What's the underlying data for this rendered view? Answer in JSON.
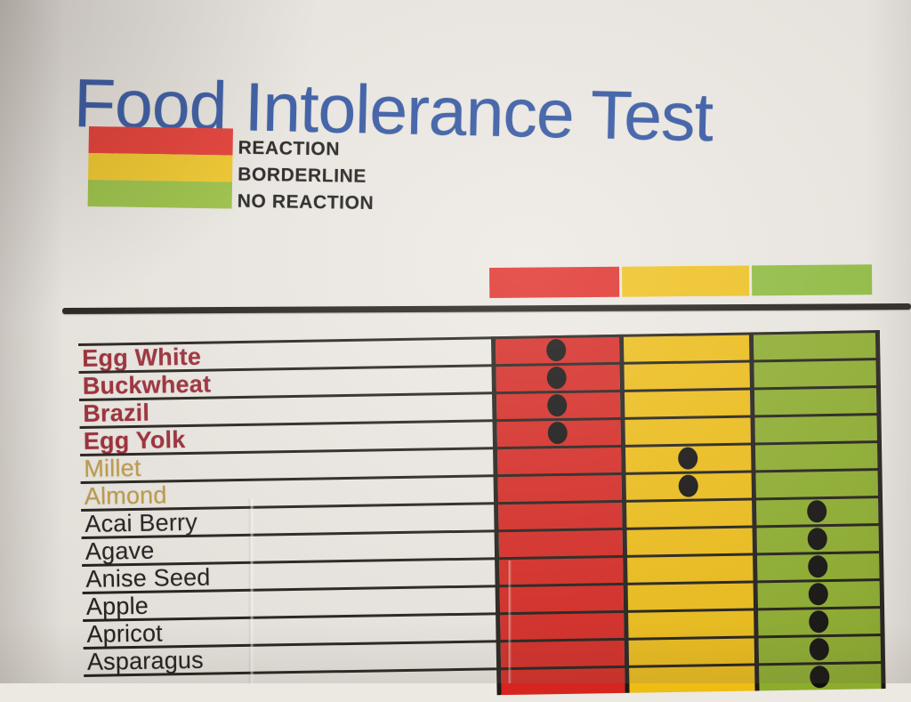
{
  "title": "Food Intolerance Test",
  "legend": {
    "items": [
      {
        "label": "REACTION",
        "color": "#e63229"
      },
      {
        "label": "BORDERLINE",
        "color": "#f2c71e"
      },
      {
        "label": "NO REACTION",
        "color": "#97c03c"
      }
    ]
  },
  "header_bar": {
    "segments": [
      {
        "name": "reaction",
        "color": "#e02b25"
      },
      {
        "name": "borderline",
        "color": "#f0c11a"
      },
      {
        "name": "no_reaction",
        "color": "#8cbb3a"
      }
    ]
  },
  "table": {
    "categories": {
      "reaction": {
        "label_color": "#9b2531",
        "bold": true,
        "column": "reaction"
      },
      "borderline": {
        "label_color": "#bf9a40",
        "bold": false,
        "column": "borderline"
      },
      "no_reaction": {
        "label_color": "#1d1c1a",
        "bold": false,
        "column": "no_reaction"
      }
    },
    "column_colors": {
      "reaction": "#d6251f",
      "borderline": "#eebd14",
      "no_reaction": "#8cad2b"
    },
    "rows": [
      {
        "food": "Egg White",
        "category": "reaction"
      },
      {
        "food": "Buckwheat",
        "category": "reaction"
      },
      {
        "food": "Brazil",
        "category": "reaction"
      },
      {
        "food": "Egg Yolk",
        "category": "reaction"
      },
      {
        "food": "Millet",
        "category": "borderline"
      },
      {
        "food": "Almond",
        "category": "borderline"
      },
      {
        "food": "Acai Berry",
        "category": "no_reaction"
      },
      {
        "food": "Agave",
        "category": "no_reaction"
      },
      {
        "food": "Anise Seed",
        "category": "no_reaction"
      },
      {
        "food": "Apple",
        "category": "no_reaction"
      },
      {
        "food": "Apricot",
        "category": "no_reaction"
      },
      {
        "food": "Asparagus",
        "category": "no_reaction"
      },
      {
        "food": "",
        "category": "no_reaction"
      }
    ]
  },
  "colors": {
    "title_blue": "#2b51a0",
    "paper": "#ece8e2",
    "line_black": "#1e1a15",
    "dot_black": "#0f0e0c"
  }
}
